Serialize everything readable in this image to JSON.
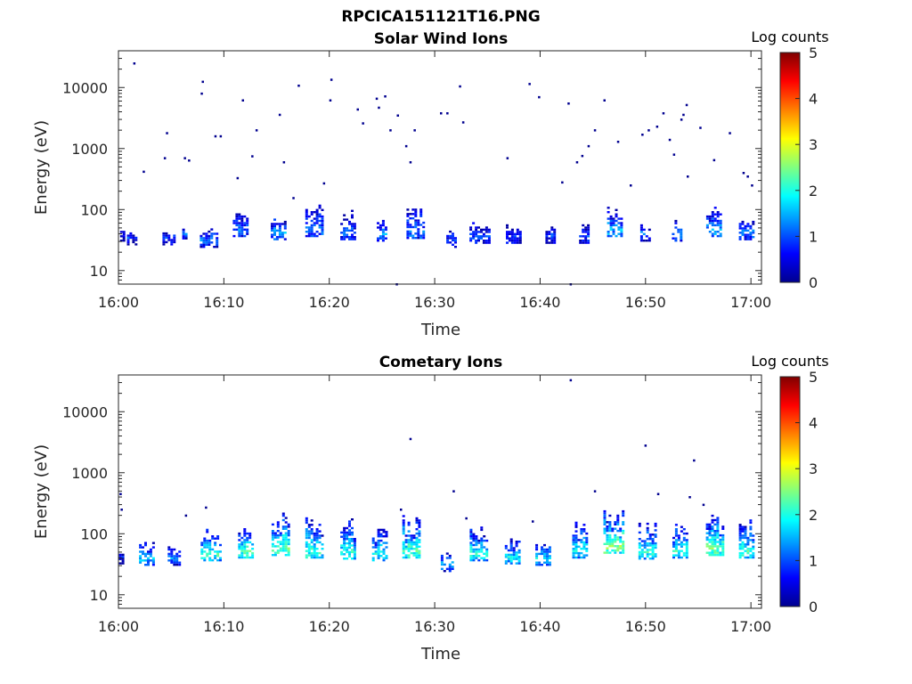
{
  "figure_title": "RPCICA151121T16.PNG",
  "colors": {
    "colormap": [
      "#00008f",
      "#0000ff",
      "#0080ff",
      "#00ffff",
      "#80ff80",
      "#ffff00",
      "#ff8000",
      "#ff0000",
      "#800000"
    ],
    "frame": "#262626"
  },
  "chart_data": [
    {
      "type": "heatmap",
      "title": "Solar Wind Ions",
      "xlabel": "Time",
      "ylabel": "Energy (eV)",
      "x_ticks": [
        "16:00",
        "16:10",
        "16:20",
        "16:30",
        "16:40",
        "16:50",
        "17:00"
      ],
      "xlim_minutes": [
        0,
        61
      ],
      "y_ticks": [
        "10",
        "100",
        "1000",
        "10000"
      ],
      "y_scale": "log",
      "ylim": [
        6,
        40000
      ],
      "colorbar": {
        "label": "Log counts",
        "range": [
          0,
          5
        ],
        "ticks": [
          "0",
          "1",
          "2",
          "3",
          "4",
          "5"
        ]
      },
      "bursts": [
        {
          "t": 0.4,
          "center": 38,
          "intensity": 0.8,
          "width": 2,
          "height": 2
        },
        {
          "t": 1.3,
          "center": 33,
          "intensity": 0.9,
          "width": 4,
          "height": 2
        },
        {
          "t": 4.8,
          "center": 33,
          "intensity": 0.9,
          "width": 5,
          "height": 3
        },
        {
          "t": 6.3,
          "center": 38,
          "intensity": 1.4,
          "width": 2,
          "height": 3
        },
        {
          "t": 8.6,
          "center": 30,
          "intensity": 1.2,
          "width": 7,
          "height": 5
        },
        {
          "t": 11.6,
          "center": 45,
          "intensity": 1.1,
          "width": 6,
          "height": 9
        },
        {
          "t": 15.2,
          "center": 40,
          "intensity": 1.4,
          "width": 6,
          "height": 8
        },
        {
          "t": 18.6,
          "center": 45,
          "intensity": 1.1,
          "width": 7,
          "height": 10
        },
        {
          "t": 21.8,
          "center": 40,
          "intensity": 1.0,
          "width": 6,
          "height": 9
        },
        {
          "t": 25.0,
          "center": 38,
          "intensity": 1.3,
          "width": 4,
          "height": 6
        },
        {
          "t": 28.2,
          "center": 42,
          "intensity": 1.2,
          "width": 7,
          "height": 10
        },
        {
          "t": 31.6,
          "center": 30,
          "intensity": 1.0,
          "width": 4,
          "height": 5
        },
        {
          "t": 34.3,
          "center": 35,
          "intensity": 0.9,
          "width": 8,
          "height": 6
        },
        {
          "t": 37.5,
          "center": 35,
          "intensity": 0.9,
          "width": 6,
          "height": 5
        },
        {
          "t": 41.0,
          "center": 35,
          "intensity": 0.9,
          "width": 4,
          "height": 4
        },
        {
          "t": 44.2,
          "center": 35,
          "intensity": 0.9,
          "width": 4,
          "height": 5
        },
        {
          "t": 47.1,
          "center": 45,
          "intensity": 1.5,
          "width": 6,
          "height": 9
        },
        {
          "t": 50.0,
          "center": 38,
          "intensity": 1.2,
          "width": 4,
          "height": 4
        },
        {
          "t": 53.0,
          "center": 38,
          "intensity": 1.1,
          "width": 4,
          "height": 6
        },
        {
          "t": 56.5,
          "center": 45,
          "intensity": 1.4,
          "width": 6,
          "height": 9
        },
        {
          "t": 59.6,
          "center": 40,
          "intensity": 1.3,
          "width": 6,
          "height": 6
        }
      ],
      "sparse_points": [
        [
          1.4,
          25000
        ],
        [
          2.3,
          420
        ],
        [
          4.3,
          700
        ],
        [
          4.5,
          1800
        ],
        [
          6.2,
          700
        ],
        [
          6.6,
          640
        ],
        [
          7.8,
          8000
        ],
        [
          7.9,
          12500
        ],
        [
          9.1,
          1600
        ],
        [
          9.6,
          1600
        ],
        [
          11.2,
          330
        ],
        [
          11.7,
          6200
        ],
        [
          12.6,
          750
        ],
        [
          13.0,
          2000
        ],
        [
          15.2,
          3600
        ],
        [
          15.6,
          600
        ],
        [
          16.5,
          155
        ],
        [
          17.0,
          10800
        ],
        [
          19.4,
          270
        ],
        [
          20.0,
          6200
        ],
        [
          20.1,
          13500
        ],
        [
          22.6,
          4400
        ],
        [
          23.1,
          2600
        ],
        [
          24.4,
          6600
        ],
        [
          24.6,
          4700
        ],
        [
          25.2,
          7200
        ],
        [
          25.7,
          2000
        ],
        [
          26.4,
          3500
        ],
        [
          27.2,
          1100
        ],
        [
          27.6,
          600
        ],
        [
          28.0,
          2000
        ],
        [
          30.5,
          3800
        ],
        [
          31.1,
          3800
        ],
        [
          32.3,
          10500
        ],
        [
          32.6,
          2700
        ],
        [
          36.8,
          700
        ],
        [
          38.9,
          11500
        ],
        [
          39.8,
          7000
        ],
        [
          42.0,
          280
        ],
        [
          42.6,
          5500
        ],
        [
          43.4,
          600
        ],
        [
          43.9,
          760
        ],
        [
          44.5,
          1100
        ],
        [
          45.1,
          2000
        ],
        [
          46.0,
          6200
        ],
        [
          47.3,
          1300
        ],
        [
          48.5,
          250
        ],
        [
          49.6,
          1700
        ],
        [
          50.2,
          2000
        ],
        [
          51.0,
          2300
        ],
        [
          51.6,
          3800
        ],
        [
          52.2,
          1400
        ],
        [
          52.6,
          800
        ],
        [
          53.3,
          3000
        ],
        [
          53.5,
          3600
        ],
        [
          53.8,
          5200
        ],
        [
          53.9,
          350
        ],
        [
          55.1,
          2200
        ],
        [
          56.4,
          650
        ],
        [
          57.9,
          1800
        ],
        [
          59.2,
          400
        ],
        [
          59.6,
          350
        ],
        [
          60.0,
          250
        ],
        [
          26.3,
          6
        ],
        [
          42.8,
          6
        ]
      ]
    },
    {
      "type": "heatmap",
      "title": "Cometary Ions",
      "xlabel": "Time",
      "ylabel": "Energy (eV)",
      "x_ticks": [
        "16:00",
        "16:10",
        "16:20",
        "16:30",
        "16:40",
        "16:50",
        "17:00"
      ],
      "xlim_minutes": [
        0,
        61
      ],
      "y_ticks": [
        "10",
        "100",
        "1000",
        "10000"
      ],
      "y_scale": "log",
      "ylim": [
        6,
        40000
      ],
      "colorbar": {
        "label": "Log counts",
        "range": [
          0,
          5
        ],
        "ticks": [
          "0",
          "1",
          "2",
          "3",
          "4",
          "5"
        ]
      },
      "bursts": [
        {
          "t": 0.3,
          "center": 40,
          "intensity": 1.0,
          "width": 2,
          "height": 2
        },
        {
          "t": 2.7,
          "center": 38,
          "intensity": 1.6,
          "width": 6,
          "height": 6
        },
        {
          "t": 5.3,
          "center": 38,
          "intensity": 1.3,
          "width": 5,
          "height": 5
        },
        {
          "t": 8.8,
          "center": 45,
          "intensity": 2.2,
          "width": 8,
          "height": 11
        },
        {
          "t": 12.1,
          "center": 50,
          "intensity": 2.2,
          "width": 6,
          "height": 13
        },
        {
          "t": 15.4,
          "center": 55,
          "intensity": 2.3,
          "width": 7,
          "height": 14
        },
        {
          "t": 18.6,
          "center": 50,
          "intensity": 2.1,
          "width": 7,
          "height": 13
        },
        {
          "t": 21.8,
          "center": 48,
          "intensity": 2.0,
          "width": 6,
          "height": 13
        },
        {
          "t": 24.8,
          "center": 45,
          "intensity": 1.9,
          "width": 6,
          "height": 10
        },
        {
          "t": 27.8,
          "center": 50,
          "intensity": 2.2,
          "width": 7,
          "height": 14
        },
        {
          "t": 31.2,
          "center": 30,
          "intensity": 1.6,
          "width": 5,
          "height": 5
        },
        {
          "t": 34.2,
          "center": 45,
          "intensity": 2.0,
          "width": 7,
          "height": 11
        },
        {
          "t": 37.4,
          "center": 40,
          "intensity": 1.8,
          "width": 6,
          "height": 8
        },
        {
          "t": 40.3,
          "center": 38,
          "intensity": 1.8,
          "width": 6,
          "height": 7
        },
        {
          "t": 43.8,
          "center": 50,
          "intensity": 1.9,
          "width": 6,
          "height": 11
        },
        {
          "t": 47.0,
          "center": 60,
          "intensity": 2.6,
          "width": 8,
          "height": 15
        },
        {
          "t": 50.2,
          "center": 48,
          "intensity": 2.0,
          "width": 7,
          "height": 12
        },
        {
          "t": 53.3,
          "center": 50,
          "intensity": 2.1,
          "width": 6,
          "height": 13
        },
        {
          "t": 56.6,
          "center": 55,
          "intensity": 2.4,
          "width": 7,
          "height": 14
        },
        {
          "t": 59.6,
          "center": 50,
          "intensity": 2.1,
          "width": 6,
          "height": 13
        }
      ],
      "sparse_points": [
        [
          0.1,
          450
        ],
        [
          0.2,
          250
        ],
        [
          27.6,
          3600
        ],
        [
          31.7,
          500
        ],
        [
          42.8,
          33000
        ],
        [
          49.9,
          2800
        ],
        [
          54.5,
          1600
        ],
        [
          51.1,
          450
        ],
        [
          54.1,
          400
        ],
        [
          55.4,
          300
        ],
        [
          45.1,
          500
        ],
        [
          6.3,
          200
        ],
        [
          8.2,
          270
        ],
        [
          26.7,
          250
        ],
        [
          32.9,
          180
        ],
        [
          39.2,
          160
        ]
      ]
    }
  ]
}
